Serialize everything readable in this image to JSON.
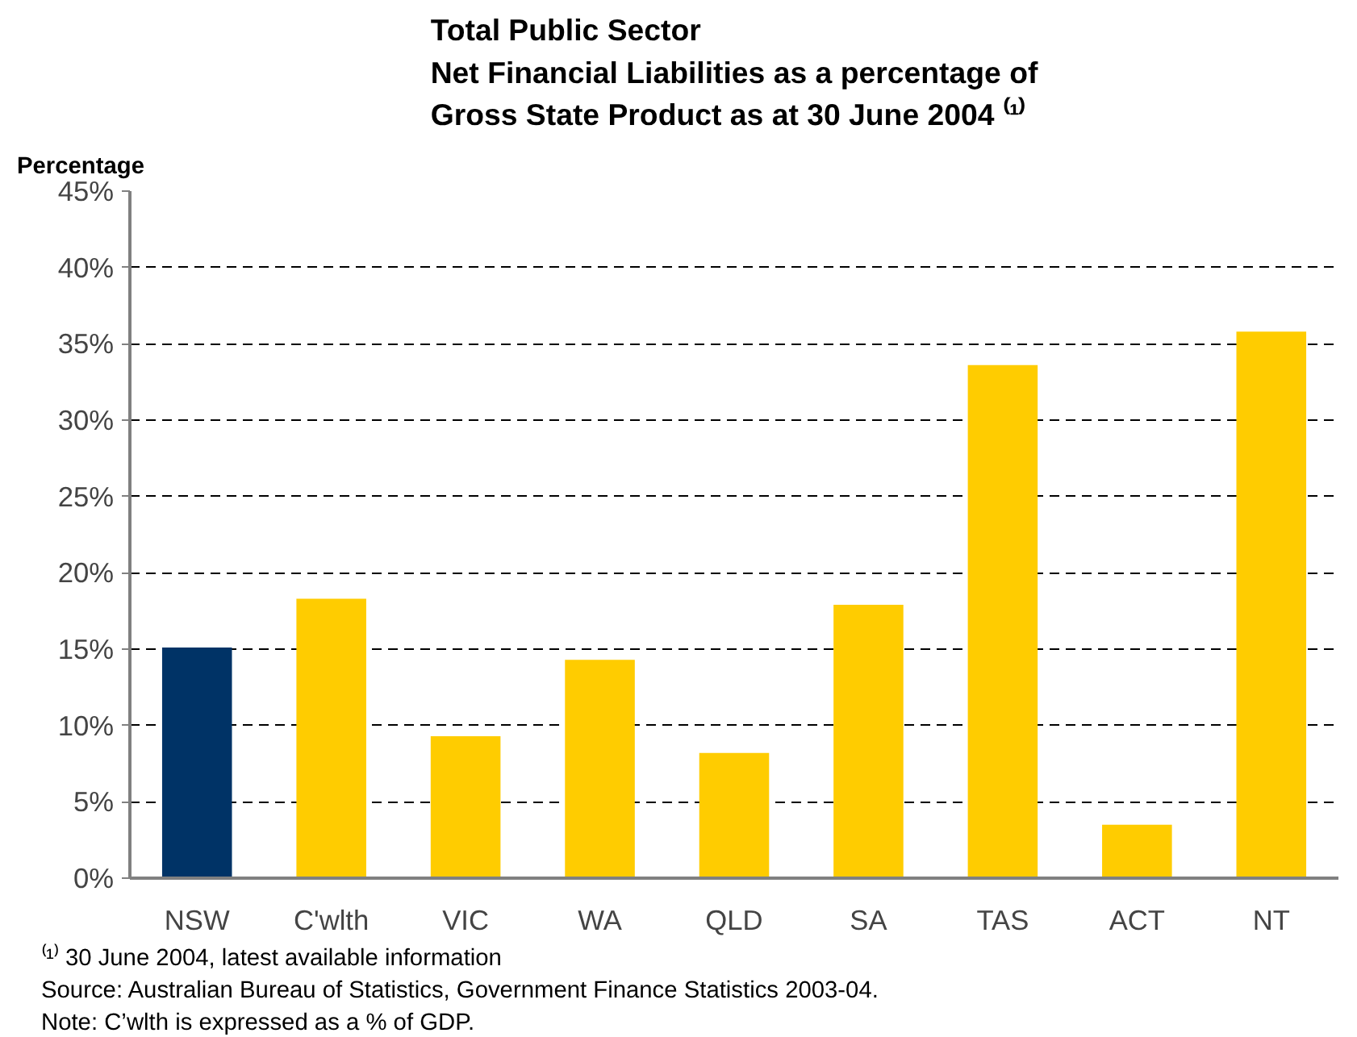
{
  "chart_data": {
    "type": "bar",
    "title": "Total Public Sector\nNet Financial Liabilities as a percentage of\nGross State Product as at 30 June 2004 ⁽¹⁾",
    "ylabel": "Percentage",
    "categories": [
      "NSW",
      "C'wlth",
      "VIC",
      "WA",
      "QLD",
      "SA",
      "TAS",
      "ACT",
      "NT"
    ],
    "values": [
      15.1,
      18.3,
      9.3,
      14.3,
      8.2,
      17.9,
      33.6,
      3.5,
      35.8
    ],
    "colors": [
      "#003366",
      "#ffcc00",
      "#ffcc00",
      "#ffcc00",
      "#ffcc00",
      "#ffcc00",
      "#ffcc00",
      "#ffcc00",
      "#ffcc00"
    ],
    "ylim": [
      0,
      45
    ],
    "yticks": [
      {
        "value": 0,
        "label": "0%"
      },
      {
        "value": 5,
        "label": "5%"
      },
      {
        "value": 10,
        "label": "10%"
      },
      {
        "value": 15,
        "label": "15%"
      },
      {
        "value": 20,
        "label": "20%"
      },
      {
        "value": 25,
        "label": "25%"
      },
      {
        "value": 30,
        "label": "30%"
      },
      {
        "value": 35,
        "label": "35%"
      },
      {
        "value": 40,
        "label": "40%"
      },
      {
        "value": 45,
        "label": "45%"
      }
    ],
    "grid": "y",
    "annotations": [
      "⁽¹⁾   30 June 2004, latest available information",
      "Source:  Australian Bureau of Statistics, Government Finance Statistics 2003-04.",
      "Note:  C’wlth is expressed as a % of GDP."
    ]
  }
}
